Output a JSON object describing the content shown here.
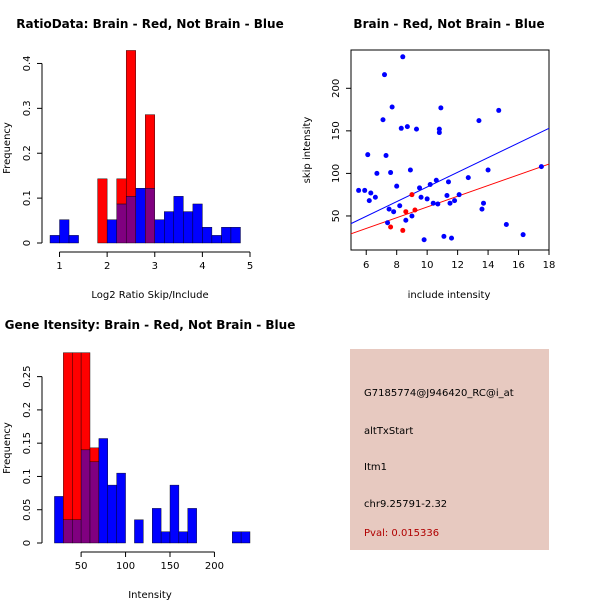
{
  "colors": {
    "red": "#ff0000",
    "blue": "#0000ff",
    "overlap": "#800080",
    "info_bg": "#e7c9c0",
    "pval_text": "#b00000"
  },
  "info_panel": {
    "probe_id": "G7185774@J946420_RC@i_at",
    "event_type": "altTxStart",
    "gene": "Itm1",
    "location": "chr9.25791-2.32",
    "pval": "Pval: 0.015336"
  },
  "chart_data": [
    {
      "id": "ratio_hist",
      "type": "bar",
      "title": "RatioData: Brain - Red, Not Brain - Blue",
      "xlabel": "Log2 Ratio Skip/Include",
      "ylabel": "Frequency",
      "xlim": [
        0.8,
        5.0
      ],
      "ylim": [
        0,
        0.43
      ],
      "xticks": [
        1,
        2,
        3,
        4,
        5
      ],
      "yticks": [
        0.0,
        0.1,
        0.2,
        0.3,
        0.4
      ],
      "bin_width": 0.2,
      "series": [
        {
          "name": "Not Brain",
          "color": "blue",
          "bins": [
            [
              0.9,
              0.017
            ],
            [
              1.1,
              0.052
            ],
            [
              1.3,
              0.017
            ],
            [
              2.1,
              0.052
            ],
            [
              2.3,
              0.087
            ],
            [
              2.5,
              0.104
            ],
            [
              2.7,
              0.122
            ],
            [
              2.9,
              0.122
            ],
            [
              3.1,
              0.052
            ],
            [
              3.3,
              0.07
            ],
            [
              3.5,
              0.104
            ],
            [
              3.7,
              0.07
            ],
            [
              3.9,
              0.087
            ],
            [
              4.1,
              0.035
            ],
            [
              4.3,
              0.017
            ],
            [
              4.5,
              0.035
            ],
            [
              4.7,
              0.035
            ]
          ]
        },
        {
          "name": "Brain",
          "color": "red",
          "bins": [
            [
              1.9,
              0.143
            ],
            [
              2.3,
              0.143
            ],
            [
              2.5,
              0.429
            ],
            [
              2.9,
              0.286
            ]
          ]
        }
      ]
    },
    {
      "id": "scatter",
      "type": "scatter",
      "title": "Brain - Red, Not Brain - Blue",
      "xlabel": "include intensity",
      "ylabel": "skip intensity",
      "xlim": [
        5.0,
        18.0
      ],
      "ylim": [
        10,
        245
      ],
      "xticks": [
        6,
        8,
        10,
        12,
        14,
        16,
        18
      ],
      "yticks": [
        50,
        100,
        150,
        200
      ],
      "series": [
        {
          "name": "Not Brain",
          "color": "blue",
          "points": [
            [
              5.5,
              80
            ],
            [
              5.9,
              80
            ],
            [
              6.1,
              122
            ],
            [
              6.2,
              68
            ],
            [
              6.3,
              77
            ],
            [
              6.6,
              72
            ],
            [
              6.7,
              100
            ],
            [
              7.1,
              163
            ],
            [
              7.2,
              216
            ],
            [
              7.3,
              121
            ],
            [
              7.4,
              42
            ],
            [
              7.5,
              58
            ],
            [
              7.6,
              101
            ],
            [
              7.7,
              178
            ],
            [
              7.8,
              55
            ],
            [
              8.0,
              85
            ],
            [
              8.2,
              62
            ],
            [
              8.3,
              153
            ],
            [
              8.4,
              237
            ],
            [
              8.6,
              45
            ],
            [
              8.7,
              155
            ],
            [
              8.9,
              104
            ],
            [
              9.0,
              50
            ],
            [
              9.3,
              152
            ],
            [
              9.5,
              83
            ],
            [
              9.6,
              72
            ],
            [
              9.8,
              22
            ],
            [
              10.0,
              70
            ],
            [
              10.2,
              87
            ],
            [
              10.4,
              65
            ],
            [
              10.6,
              92
            ],
            [
              10.7,
              64
            ],
            [
              10.8,
              152
            ],
            [
              10.8,
              148
            ],
            [
              10.9,
              177
            ],
            [
              11.1,
              26
            ],
            [
              11.3,
              74
            ],
            [
              11.4,
              90
            ],
            [
              11.5,
              65
            ],
            [
              11.6,
              24
            ],
            [
              11.8,
              68
            ],
            [
              12.1,
              75
            ],
            [
              12.7,
              95
            ],
            [
              13.4,
              162
            ],
            [
              13.6,
              58
            ],
            [
              13.7,
              65
            ],
            [
              14.0,
              104
            ],
            [
              14.7,
              174
            ],
            [
              15.2,
              40
            ],
            [
              16.3,
              28
            ],
            [
              17.5,
              108
            ]
          ]
        },
        {
          "name": "Brain",
          "color": "red",
          "points": [
            [
              7.6,
              37
            ],
            [
              8.4,
              33
            ],
            [
              8.6,
              55
            ],
            [
              9.0,
              75
            ],
            [
              9.2,
              57
            ]
          ]
        }
      ],
      "lines": [
        {
          "name": "Not Brain fit",
          "color": "blue",
          "from": [
            5.0,
            41
          ],
          "to": [
            18.0,
            153
          ]
        },
        {
          "name": "Brain fit",
          "color": "red",
          "from": [
            5.0,
            29
          ],
          "to": [
            18.0,
            111
          ]
        }
      ]
    },
    {
      "id": "gene_hist",
      "type": "bar",
      "title": "Gene Itensity: Brain - Red, Not Brain - Blue",
      "xlabel": "Intensity",
      "ylabel": "Frequency",
      "xlim": [
        15,
        240
      ],
      "ylim": [
        0,
        0.29
      ],
      "xticks": [
        50,
        100,
        150,
        200
      ],
      "yticks": [
        0.0,
        0.05,
        0.1,
        0.15,
        0.2,
        0.25
      ],
      "bin_width": 10,
      "series": [
        {
          "name": "Not Brain",
          "color": "blue",
          "bins": [
            [
              25,
              0.07
            ],
            [
              35,
              0.035
            ],
            [
              45,
              0.035
            ],
            [
              55,
              0.14
            ],
            [
              65,
              0.122
            ],
            [
              75,
              0.157
            ],
            [
              85,
              0.087
            ],
            [
              95,
              0.105
            ],
            [
              115,
              0.035
            ],
            [
              135,
              0.052
            ],
            [
              145,
              0.017
            ],
            [
              155,
              0.087
            ],
            [
              165,
              0.017
            ],
            [
              175,
              0.052
            ],
            [
              225,
              0.017
            ],
            [
              235,
              0.017
            ]
          ]
        },
        {
          "name": "Brain",
          "color": "red",
          "bins": [
            [
              35,
              0.286
            ],
            [
              45,
              0.286
            ],
            [
              55,
              0.286
            ],
            [
              65,
              0.143
            ]
          ]
        }
      ]
    }
  ]
}
